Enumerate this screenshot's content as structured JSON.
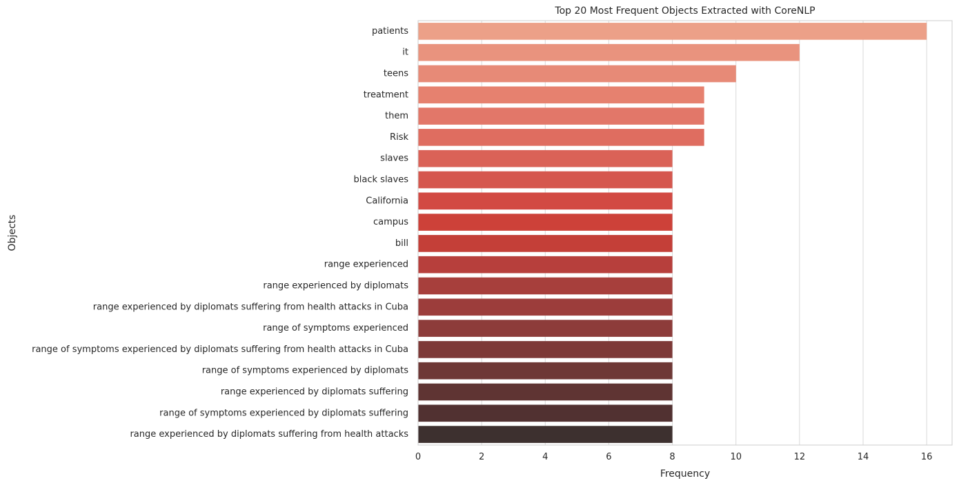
{
  "chart_data": {
    "type": "bar",
    "orientation": "horizontal",
    "title": "Top 20 Most Frequent Objects Extracted with CoreNLP",
    "xlabel": "Frequency",
    "ylabel": "Objects",
    "xlim": [
      0,
      16.8
    ],
    "xticks": [
      0,
      2,
      4,
      6,
      8,
      10,
      12,
      14,
      16
    ],
    "grid": true,
    "categories": [
      "patients",
      "it",
      "teens",
      "treatment",
      "them",
      "Risk",
      "slaves",
      "black slaves",
      "California",
      "campus",
      "bill",
      "range experienced",
      "range experienced by diplomats",
      "range experienced by diplomats suffering from health attacks in Cuba",
      "range of symptoms experienced",
      "range of symptoms experienced by diplomats suffering from health attacks in Cuba",
      "range of symptoms experienced by diplomats",
      "range experienced by diplomats suffering",
      "range of symptoms experienced by diplomats suffering",
      "range experienced by diplomats suffering from health attacks"
    ],
    "values": [
      16,
      12,
      10,
      9,
      9,
      9,
      8,
      8,
      8,
      8,
      8,
      8,
      8,
      8,
      8,
      8,
      8,
      8,
      8,
      8
    ],
    "colors": [
      "#eca088",
      "#e9937e",
      "#e78a77",
      "#e6816f",
      "#e27769",
      "#df6d60",
      "#da6257",
      "#d5574e",
      "#d24a43",
      "#cd4139",
      "#c43f38",
      "#b73f3c",
      "#a73f3c",
      "#9c3d3b",
      "#8d3c3a",
      "#7d3937",
      "#6e3836",
      "#5f3433",
      "#513131",
      "#3d302f"
    ]
  }
}
